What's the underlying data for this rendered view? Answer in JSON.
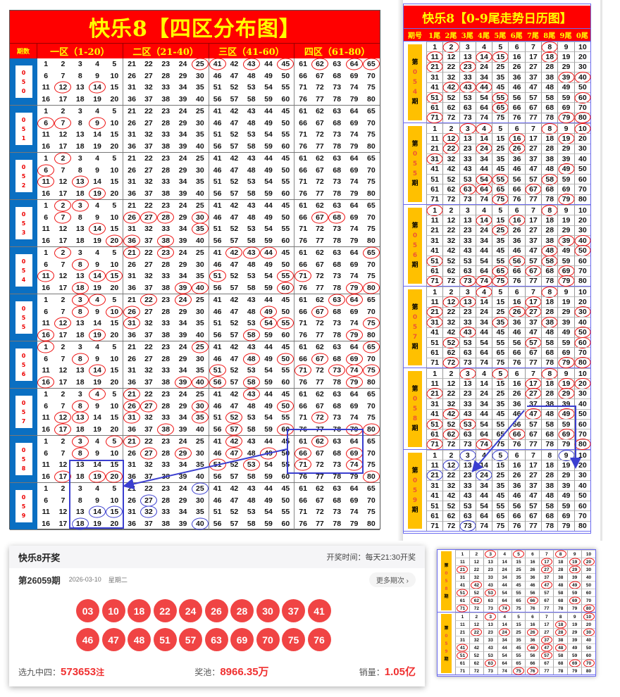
{
  "left_chart": {
    "title": "快乐8【四区分布图】",
    "period_header": "期数",
    "zones": [
      "一区（1-20）",
      "二区（21-40）",
      "三区（41-60）",
      "四区（61-80）"
    ],
    "periods": [
      {
        "id": "050",
        "circled": [
          12,
          14,
          25,
          41,
          43,
          45,
          62,
          64,
          65
        ]
      },
      {
        "id": "051",
        "circled": [
          6,
          7,
          9
        ]
      },
      {
        "id": "052",
        "circled": [
          2,
          6,
          11,
          13,
          19
        ]
      },
      {
        "id": "053",
        "circled": [
          2,
          3,
          7,
          14,
          20,
          26,
          27,
          28,
          30,
          35,
          36,
          38,
          67,
          68
        ]
      },
      {
        "id": "054",
        "circled": [
          2,
          8,
          11,
          14,
          15,
          18,
          21,
          23,
          39,
          40,
          42,
          43,
          44,
          51,
          55,
          60,
          65,
          71,
          79,
          80
        ]
      },
      {
        "id": "055",
        "circled": [
          3,
          4,
          8,
          10,
          12,
          16,
          19,
          22,
          24,
          26,
          31,
          49,
          54,
          55,
          58,
          63,
          64,
          67,
          75,
          79
        ]
      },
      {
        "id": "056",
        "circled": [
          1,
          8,
          14,
          16,
          25,
          39,
          40,
          48,
          50,
          51,
          56,
          58,
          65,
          67,
          69,
          71,
          73,
          74,
          75,
          79
        ]
      },
      {
        "id": "057",
        "circled": [
          4,
          8,
          12,
          13,
          17,
          21,
          26,
          27,
          30,
          31,
          35,
          38,
          43,
          50,
          52,
          57,
          60,
          72,
          79,
          80
        ]
      },
      {
        "id": "058",
        "circled": [
          3,
          5,
          8,
          17,
          19,
          20,
          21,
          27,
          29,
          42,
          47,
          49,
          51,
          53,
          62,
          66,
          69,
          71,
          74,
          80
        ]
      },
      {
        "id": "059",
        "circled": [],
        "marked": [
          14,
          15,
          18,
          25,
          27,
          32,
          40
        ]
      }
    ]
  },
  "right_chart": {
    "title": "快乐8【0-9尾走势日历图】",
    "period_header": "期号",
    "tail_headers": [
      "1尾",
      "2尾",
      "3尾",
      "4尾",
      "5尾",
      "6尾",
      "7尾",
      "8尾",
      "9尾",
      "0尾"
    ],
    "label_prefix": "第",
    "label_suffix": "期",
    "periods": [
      {
        "id": "054",
        "circled": [
          2,
          8,
          11,
          14,
          15,
          18,
          21,
          23,
          39,
          40,
          42,
          43,
          44,
          51,
          55,
          60,
          65,
          71,
          79,
          80
        ]
      },
      {
        "id": "055",
        "circled": [
          3,
          4,
          8,
          10,
          12,
          16,
          19,
          22,
          24,
          26,
          31,
          49,
          54,
          55,
          58,
          63,
          64,
          67,
          75,
          79
        ]
      },
      {
        "id": "056",
        "circled": [
          1,
          8,
          14,
          16,
          25,
          39,
          40,
          48,
          50,
          51,
          56,
          58,
          65,
          67,
          69,
          71,
          73,
          74,
          75,
          79
        ]
      },
      {
        "id": "057",
        "circled": [
          4,
          8,
          12,
          13,
          17,
          21,
          26,
          27,
          30,
          31,
          35,
          38,
          43,
          50,
          52,
          57,
          60,
          72,
          79,
          80
        ]
      },
      {
        "id": "058",
        "circled": [
          3,
          5,
          8,
          17,
          19,
          20,
          21,
          27,
          29,
          42,
          47,
          49,
          51,
          53,
          62,
          66,
          69,
          71,
          74,
          80
        ]
      },
      {
        "id": "059",
        "circled": [],
        "marked": [
          3,
          5,
          9,
          12,
          21,
          24,
          73
        ]
      }
    ]
  },
  "inset": {
    "periods": [
      {
        "id": "058",
        "circled": [
          3,
          5,
          8,
          17,
          19,
          20,
          21,
          27,
          29,
          42,
          47,
          49,
          51,
          53,
          62,
          66,
          69,
          71,
          74,
          80
        ]
      },
      {
        "id": "059",
        "circled": [
          3,
          10,
          18,
          22,
          24,
          26,
          28,
          30,
          37,
          41,
          46,
          47,
          48,
          51,
          57,
          63,
          69,
          70,
          75,
          76
        ]
      }
    ]
  },
  "popup": {
    "title": "快乐8开奖",
    "draw_time": "开奖时间：每天21:30开奖",
    "issue": "第26059期",
    "date": "2026-03-10",
    "weekday": "星期二",
    "more_label": "更多期次",
    "balls": [
      "03",
      "10",
      "18",
      "22",
      "24",
      "26",
      "28",
      "30",
      "37",
      "41",
      "46",
      "47",
      "48",
      "51",
      "57",
      "63",
      "69",
      "70",
      "75",
      "76"
    ],
    "stats": {
      "pick9_label": "选九中四：",
      "pick9_value": "573653",
      "pick9_unit": "注",
      "pool_label": "奖池：",
      "pool_value": "8966.35",
      "pool_unit": "万",
      "sales_label": "销量：",
      "sales_value": "1.05",
      "sales_unit": "亿"
    }
  },
  "colors": {
    "circle": "#e11111",
    "marker": "#3b3fd0",
    "header_bg": "#ff0000",
    "header_text": "#ffff00",
    "ball": "#f04444",
    "label_blue": "#0a6fc2",
    "label_orange": "#ffc000"
  }
}
